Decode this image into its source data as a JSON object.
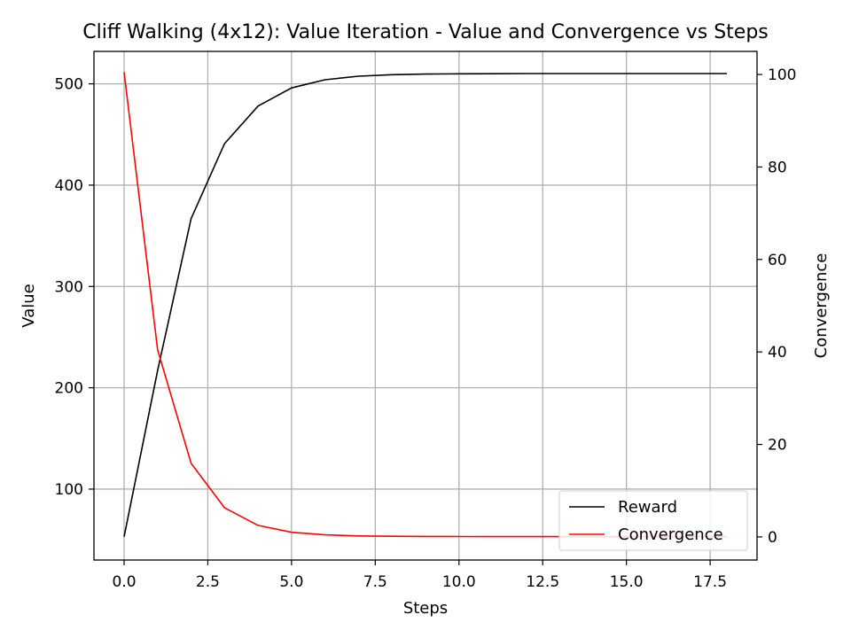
{
  "chart_data": {
    "type": "line",
    "title": "Cliff Walking (4x12): Value Iteration - Value and Convergence vs Steps",
    "xlabel": "Steps",
    "ylabel": "Value",
    "y2label": "Convergence",
    "xlim": [
      -0.9,
      18.9
    ],
    "ylim": [
      30,
      532
    ],
    "y2lim": [
      -5,
      105
    ],
    "xticks": [
      0.0,
      2.5,
      5.0,
      7.5,
      10.0,
      12.5,
      15.0,
      17.5
    ],
    "xtick_labels": [
      "0.0",
      "2.5",
      "5.0",
      "7.5",
      "10.0",
      "12.5",
      "15.0",
      "17.5"
    ],
    "yticks": [
      100,
      200,
      300,
      400,
      500
    ],
    "ytick_labels": [
      "100",
      "200",
      "300",
      "400",
      "500"
    ],
    "y2ticks": [
      0,
      20,
      40,
      60,
      80,
      100
    ],
    "y2tick_labels": [
      "0",
      "20",
      "40",
      "60",
      "80",
      "100"
    ],
    "grid": true,
    "legend_position": "lower-right",
    "x": [
      0,
      1,
      2,
      3,
      4,
      5,
      6,
      7,
      8,
      9,
      10,
      11,
      12,
      13,
      14,
      15,
      16,
      17,
      18
    ],
    "series": [
      {
        "name": "Reward",
        "axis": "left",
        "color": "#000000",
        "values": [
          53,
          217,
          367,
          441,
          478,
          496,
          504,
          507.5,
          509,
          509.6,
          509.9,
          510,
          510.1,
          510.1,
          510.1,
          510.1,
          510.1,
          510.1,
          510.1
        ]
      },
      {
        "name": "Convergence",
        "axis": "right",
        "color": "#ff0000",
        "values": [
          100.5,
          40.5,
          15.9,
          6.3,
          2.5,
          1.0,
          0.45,
          0.22,
          0.13,
          0.09,
          0.07,
          0.06,
          0.05,
          0.05,
          0.05,
          0.05,
          0.05,
          0.05,
          0.05
        ]
      }
    ]
  }
}
